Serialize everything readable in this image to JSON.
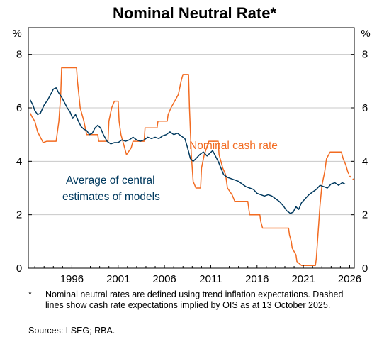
{
  "chart_data": {
    "type": "line",
    "title": "Nominal Neutral Rate*",
    "ylabel_left": "%",
    "ylabel_right": "%",
    "ylim": [
      0,
      9
    ],
    "yticks": [
      0,
      2,
      4,
      6,
      8
    ],
    "xlim": [
      1991.3,
      2026.5
    ],
    "xticks": [
      1996,
      2001,
      2006,
      2011,
      2016,
      2021,
      2026
    ],
    "grid": true,
    "series": [
      {
        "name": "Nominal cash rate",
        "color": "#f26b21",
        "values": [
          [
            1991.5,
            5.8
          ],
          [
            1991.8,
            5.6
          ],
          [
            1992.0,
            5.5
          ],
          [
            1992.3,
            5.1
          ],
          [
            1992.6,
            4.9
          ],
          [
            1992.9,
            4.7
          ],
          [
            1993.3,
            4.75
          ],
          [
            1994.3,
            4.75
          ],
          [
            1994.6,
            5.5
          ],
          [
            1994.8,
            6.5
          ],
          [
            1994.9,
            7.5
          ],
          [
            1996.5,
            7.5
          ],
          [
            1996.6,
            7.0
          ],
          [
            1996.9,
            6.0
          ],
          [
            1997.3,
            5.5
          ],
          [
            1997.6,
            5.0
          ],
          [
            1998.8,
            5.0
          ],
          [
            1998.9,
            4.75
          ],
          [
            1999.9,
            4.75
          ],
          [
            2000.0,
            5.5
          ],
          [
            2000.3,
            6.0
          ],
          [
            2000.6,
            6.25
          ],
          [
            2001.0,
            6.25
          ],
          [
            2001.1,
            5.5
          ],
          [
            2001.3,
            5.0
          ],
          [
            2001.5,
            4.75
          ],
          [
            2001.9,
            4.25
          ],
          [
            2002.4,
            4.5
          ],
          [
            2002.6,
            4.75
          ],
          [
            2003.8,
            4.75
          ],
          [
            2003.9,
            5.25
          ],
          [
            2005.2,
            5.25
          ],
          [
            2005.3,
            5.5
          ],
          [
            2006.3,
            5.5
          ],
          [
            2006.4,
            5.75
          ],
          [
            2006.7,
            6.0
          ],
          [
            2007.5,
            6.5
          ],
          [
            2007.8,
            7.0
          ],
          [
            2008.0,
            7.25
          ],
          [
            2008.6,
            7.25
          ],
          [
            2008.7,
            6.0
          ],
          [
            2008.9,
            4.25
          ],
          [
            2009.1,
            3.25
          ],
          [
            2009.4,
            3.0
          ],
          [
            2009.9,
            3.0
          ],
          [
            2010.0,
            3.75
          ],
          [
            2010.3,
            4.25
          ],
          [
            2010.8,
            4.75
          ],
          [
            2011.8,
            4.75
          ],
          [
            2011.9,
            4.25
          ],
          [
            2012.3,
            3.75
          ],
          [
            2012.6,
            3.5
          ],
          [
            2012.8,
            3.0
          ],
          [
            2013.3,
            2.75
          ],
          [
            2013.6,
            2.5
          ],
          [
            2015.0,
            2.5
          ],
          [
            2015.2,
            2.0
          ],
          [
            2016.3,
            2.0
          ],
          [
            2016.4,
            1.75
          ],
          [
            2016.6,
            1.5
          ],
          [
            2019.4,
            1.5
          ],
          [
            2019.5,
            1.25
          ],
          [
            2019.7,
            1.0
          ],
          [
            2019.8,
            0.75
          ],
          [
            2020.2,
            0.5
          ],
          [
            2020.3,
            0.25
          ],
          [
            2020.8,
            0.1
          ],
          [
            2022.3,
            0.1
          ],
          [
            2022.4,
            0.35
          ],
          [
            2022.5,
            0.85
          ],
          [
            2022.6,
            1.35
          ],
          [
            2022.8,
            2.35
          ],
          [
            2023.0,
            3.1
          ],
          [
            2023.3,
            3.6
          ],
          [
            2023.5,
            4.1
          ],
          [
            2023.9,
            4.35
          ],
          [
            2025.1,
            4.35
          ],
          [
            2025.3,
            4.1
          ],
          [
            2025.6,
            3.85
          ],
          [
            2025.8,
            3.6
          ]
        ]
      },
      {
        "name": "Cash rate expectations implied by OIS",
        "color": "#f26b21",
        "dashed": true,
        "values": [
          [
            2025.8,
            3.6
          ],
          [
            2026.0,
            3.45
          ],
          [
            2026.3,
            3.35
          ],
          [
            2026.5,
            3.3
          ]
        ]
      },
      {
        "name": "Average of central estimates of models",
        "color": "#00395e",
        "values": [
          [
            1991.5,
            6.3
          ],
          [
            1991.8,
            6.1
          ],
          [
            1992.0,
            5.9
          ],
          [
            1992.3,
            5.75
          ],
          [
            1992.6,
            5.8
          ],
          [
            1993.0,
            6.1
          ],
          [
            1993.4,
            6.3
          ],
          [
            1993.7,
            6.5
          ],
          [
            1994.0,
            6.7
          ],
          [
            1994.3,
            6.75
          ],
          [
            1994.6,
            6.55
          ],
          [
            1994.9,
            6.4
          ],
          [
            1995.2,
            6.2
          ],
          [
            1995.5,
            6.0
          ],
          [
            1995.8,
            5.85
          ],
          [
            1996.1,
            5.6
          ],
          [
            1996.4,
            5.75
          ],
          [
            1996.7,
            5.5
          ],
          [
            1997.0,
            5.3
          ],
          [
            1997.3,
            5.2
          ],
          [
            1997.6,
            5.15
          ],
          [
            1997.9,
            5.0
          ],
          [
            1998.2,
            5.05
          ],
          [
            1998.5,
            5.25
          ],
          [
            1998.8,
            5.35
          ],
          [
            1999.1,
            5.25
          ],
          [
            1999.4,
            5.0
          ],
          [
            1999.8,
            4.75
          ],
          [
            2000.2,
            4.65
          ],
          [
            2000.6,
            4.7
          ],
          [
            2001.0,
            4.7
          ],
          [
            2001.4,
            4.8
          ],
          [
            2001.8,
            4.75
          ],
          [
            2002.2,
            4.8
          ],
          [
            2002.6,
            4.9
          ],
          [
            2003.0,
            4.8
          ],
          [
            2003.4,
            4.75
          ],
          [
            2003.8,
            4.8
          ],
          [
            2004.2,
            4.9
          ],
          [
            2004.6,
            4.85
          ],
          [
            2005.0,
            4.9
          ],
          [
            2005.4,
            4.85
          ],
          [
            2005.8,
            4.95
          ],
          [
            2006.2,
            5.0
          ],
          [
            2006.6,
            5.1
          ],
          [
            2007.0,
            5.0
          ],
          [
            2007.4,
            5.05
          ],
          [
            2007.8,
            4.95
          ],
          [
            2008.2,
            4.85
          ],
          [
            2008.5,
            4.5
          ],
          [
            2008.8,
            4.1
          ],
          [
            2009.1,
            4.0
          ],
          [
            2009.4,
            4.1
          ],
          [
            2009.8,
            4.25
          ],
          [
            2010.2,
            4.35
          ],
          [
            2010.6,
            4.2
          ],
          [
            2010.9,
            4.3
          ],
          [
            2011.2,
            4.4
          ],
          [
            2011.5,
            4.2
          ],
          [
            2011.8,
            4.0
          ],
          [
            2012.1,
            3.75
          ],
          [
            2012.4,
            3.5
          ],
          [
            2012.8,
            3.4
          ],
          [
            2013.2,
            3.35
          ],
          [
            2013.6,
            3.3
          ],
          [
            2014.0,
            3.25
          ],
          [
            2014.4,
            3.15
          ],
          [
            2014.8,
            3.05
          ],
          [
            2015.2,
            3.0
          ],
          [
            2015.6,
            2.95
          ],
          [
            2016.0,
            2.8
          ],
          [
            2016.4,
            2.75
          ],
          [
            2016.8,
            2.7
          ],
          [
            2017.2,
            2.75
          ],
          [
            2017.6,
            2.7
          ],
          [
            2018.0,
            2.6
          ],
          [
            2018.4,
            2.5
          ],
          [
            2018.8,
            2.35
          ],
          [
            2019.2,
            2.15
          ],
          [
            2019.6,
            2.05
          ],
          [
            2019.9,
            2.1
          ],
          [
            2020.2,
            2.3
          ],
          [
            2020.5,
            2.2
          ],
          [
            2020.8,
            2.45
          ],
          [
            2021.2,
            2.6
          ],
          [
            2021.6,
            2.75
          ],
          [
            2022.0,
            2.85
          ],
          [
            2022.4,
            2.95
          ],
          [
            2022.8,
            3.1
          ],
          [
            2023.2,
            3.05
          ],
          [
            2023.6,
            3.0
          ],
          [
            2024.0,
            3.15
          ],
          [
            2024.4,
            3.2
          ],
          [
            2024.8,
            3.1
          ],
          [
            2025.2,
            3.2
          ],
          [
            2025.5,
            3.15
          ]
        ]
      }
    ],
    "annotations": {
      "cash_rate_label": "Nominal cash rate",
      "models_label_line1": "Average of central",
      "models_label_line2": "estimates of models"
    }
  },
  "footnote": {
    "marker": "*",
    "text": "Nominal neutral rates are defined using trend inflation expectations. Dashed lines show cash rate expectations implied by OIS as at 13 October 2025."
  },
  "sources": "Sources:   LSEG; RBA."
}
